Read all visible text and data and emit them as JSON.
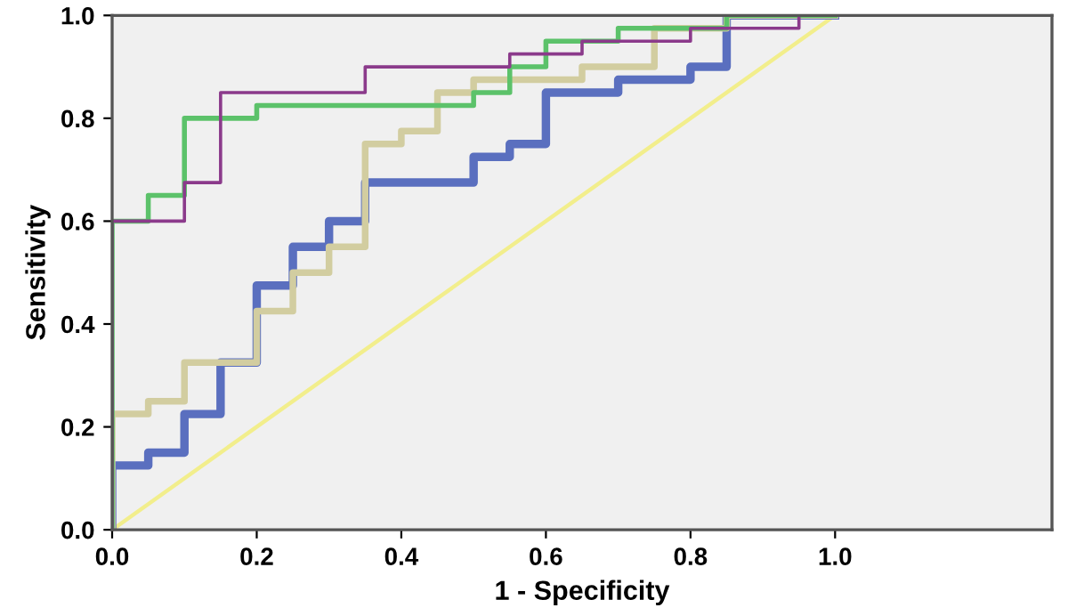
{
  "chart_data": {
    "type": "step",
    "xlabel": "1 - Specificity",
    "ylabel": "Sensitivity",
    "xlim": [
      0,
      1.3
    ],
    "ylim": [
      0,
      1
    ],
    "xticks": [
      {
        "value": 0,
        "label": "0.0"
      },
      {
        "value": 0.2,
        "label": "0.2"
      },
      {
        "value": 0.4,
        "label": "0.4"
      },
      {
        "value": 0.6,
        "label": "0.6"
      },
      {
        "value": 0.8,
        "label": "0.8"
      },
      {
        "value": 1,
        "label": "1.0"
      }
    ],
    "yticks": [
      {
        "value": 0,
        "label": "0.0"
      },
      {
        "value": 0.2,
        "label": "0.2"
      },
      {
        "value": 0.4,
        "label": "0.4"
      },
      {
        "value": 0.6,
        "label": "0.6"
      },
      {
        "value": 0.8,
        "label": "0.8"
      },
      {
        "value": 1,
        "label": "1.0"
      }
    ],
    "grid": false,
    "legend": false,
    "series": [
      {
        "type": "line",
        "color": "#f2ee8c",
        "x": [
          0,
          1
        ],
        "values": [
          0,
          1
        ]
      },
      {
        "color": "#5a6fbf",
        "x": [
          0,
          0,
          0.05,
          0.1,
          0.15,
          0.2,
          0.25,
          0.3,
          0.35,
          0.5,
          0.55,
          0.6,
          0.7,
          0.8,
          0.85,
          1
        ],
        "values": [
          0,
          0.125,
          0.15,
          0.225,
          0.325,
          0.475,
          0.55,
          0.6,
          0.675,
          0.725,
          0.75,
          0.85,
          0.875,
          0.9,
          1,
          1
        ]
      },
      {
        "color": "#d2cda0",
        "x": [
          0,
          0,
          0.05,
          0.1,
          0.2,
          0.25,
          0.3,
          0.35,
          0.4,
          0.45,
          0.5,
          0.65,
          0.75,
          0.85,
          1
        ],
        "values": [
          0,
          0.225,
          0.25,
          0.325,
          0.425,
          0.5,
          0.55,
          0.75,
          0.775,
          0.85,
          0.875,
          0.9,
          0.975,
          1,
          1
        ]
      },
      {
        "color": "#5cc26a",
        "x": [
          0,
          0,
          0.05,
          0.1,
          0.2,
          0.5,
          0.55,
          0.6,
          0.65,
          0.7,
          0.85,
          1
        ],
        "values": [
          0,
          0.6,
          0.65,
          0.8,
          0.825,
          0.85,
          0.9,
          0.95,
          0.95,
          0.975,
          1,
          1
        ]
      },
      {
        "color": "#8b3a8b",
        "x": [
          0,
          0,
          0.1,
          0.15,
          0.35,
          0.55,
          0.65,
          0.8,
          0.95,
          1
        ],
        "values": [
          0,
          0.6,
          0.675,
          0.85,
          0.9,
          0.925,
          0.95,
          0.975,
          1,
          1
        ]
      }
    ]
  }
}
